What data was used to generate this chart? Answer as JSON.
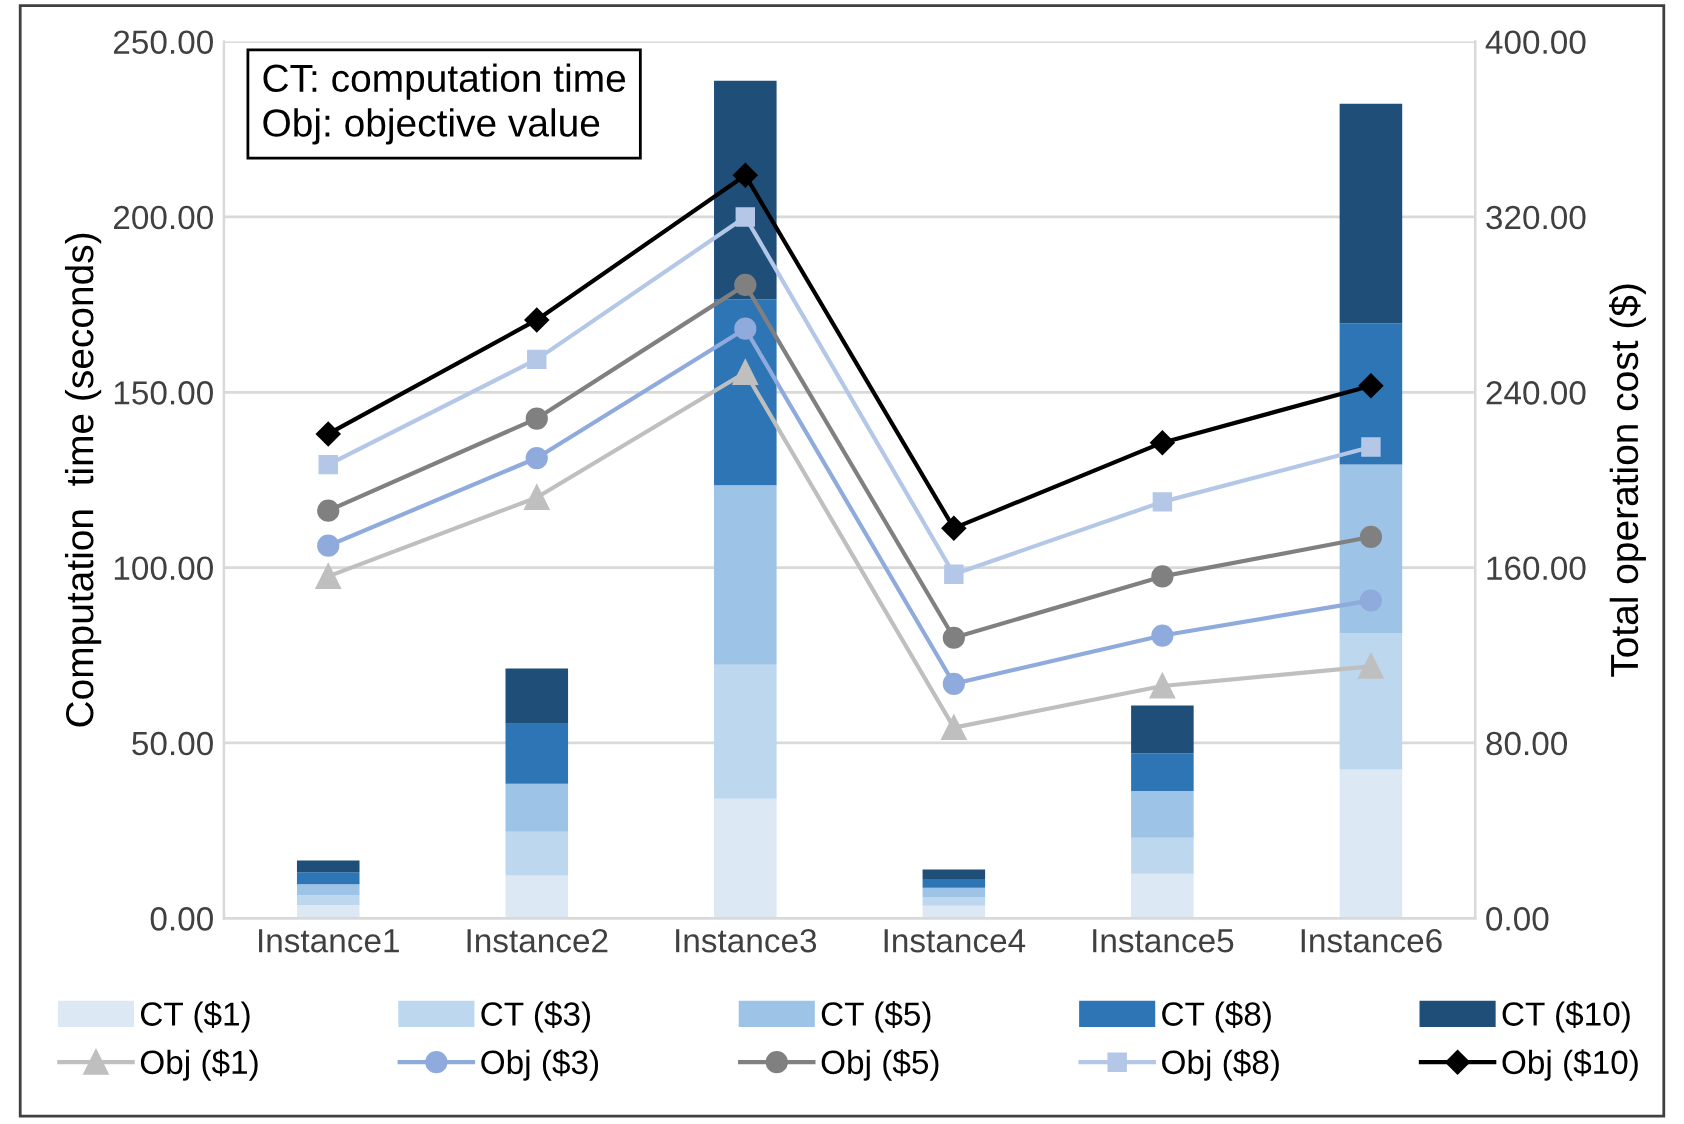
{
  "chart_data": {
    "type": "bar",
    "stacked": true,
    "categories": [
      "Instance1",
      "Instance2",
      "Instance3",
      "Instance4",
      "Instance5",
      "Instance6"
    ],
    "ylabel": "Computation  time (seconds)",
    "y2label": "Total operation cost ($)",
    "ylim": [
      0,
      250
    ],
    "yticks": [
      {
        "value": 0,
        "label": "0.00"
      },
      {
        "value": 50,
        "label": "50.00"
      },
      {
        "value": 100,
        "label": "100.00"
      },
      {
        "value": 150,
        "label": "150.00"
      },
      {
        "value": 200,
        "label": "200.00"
      },
      {
        "value": 250,
        "label": "250.00"
      }
    ],
    "y2lim": [
      0,
      400
    ],
    "y2ticks": [
      {
        "value": 0,
        "label": "0.00"
      },
      {
        "value": 80,
        "label": "80.00"
      },
      {
        "value": 160,
        "label": "160.00"
      },
      {
        "value": 240,
        "label": "240.00"
      },
      {
        "value": 320,
        "label": "320.00"
      },
      {
        "value": 400,
        "label": "400.00"
      }
    ],
    "grid": "y",
    "legend": "bottom",
    "annotations": [
      "CT: computation time\nObj: objective value"
    ],
    "series": [
      {
        "name": "CT ($1)",
        "color": "#dde8f5",
        "values": [
          3.8,
          12.2,
          34.1,
          3.6,
          12.7,
          42.4
        ]
      },
      {
        "name": "CT ($3)",
        "color": "#bdd7ee",
        "values": [
          2.8,
          12.5,
          38.2,
          2.5,
          10.3,
          38.9
        ]
      },
      {
        "name": "CT ($5)",
        "color": "#9dc3e6",
        "values": [
          3.1,
          13.7,
          51.2,
          2.6,
          13.3,
          48.1
        ]
      },
      {
        "name": "CT ($8)",
        "color": "#2e75b6",
        "values": [
          3.4,
          17.1,
          53.0,
          2.5,
          10.7,
          40.3
        ]
      },
      {
        "name": "CT ($10)",
        "color": "#1f4e79",
        "values": [
          3.4,
          15.7,
          62.3,
          2.7,
          13.7,
          62.6
        ]
      },
      {
        "name": "Obj ($1)",
        "type": "line",
        "axis": "y2",
        "marker": "triangle",
        "color": "#bfbfbf",
        "values": [
          156,
          192,
          249,
          87,
          106,
          115
        ]
      },
      {
        "name": "Obj ($3)",
        "type": "line",
        "axis": "y2",
        "marker": "circle",
        "color": "#8faadc",
        "values": [
          170,
          210,
          269,
          107,
          129,
          145
        ]
      },
      {
        "name": "Obj ($5)",
        "type": "line",
        "axis": "y2",
        "marker": "circle",
        "color": "#808080",
        "values": [
          186,
          228,
          289,
          128,
          156,
          174
        ]
      },
      {
        "name": "Obj ($8)",
        "type": "line",
        "axis": "y2",
        "marker": "square",
        "color": "#b4c7e7",
        "values": [
          207,
          255,
          320,
          157,
          190,
          215
        ]
      },
      {
        "name": "Obj ($10)",
        "type": "line",
        "axis": "y2",
        "marker": "diamond",
        "color": "#000000",
        "values": [
          221,
          273,
          339,
          178,
          217,
          243
        ]
      }
    ]
  }
}
